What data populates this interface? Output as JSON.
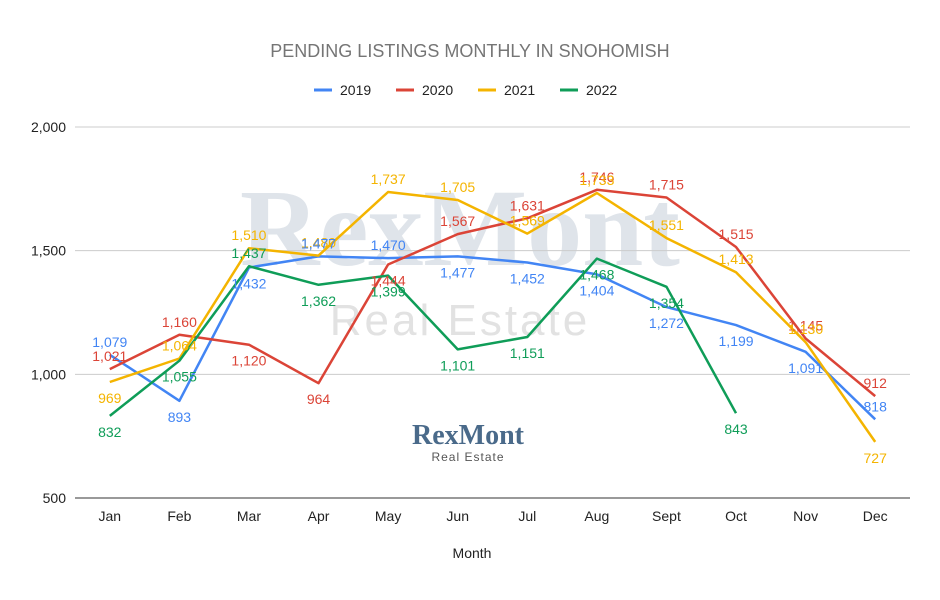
{
  "chart_data": {
    "type": "line",
    "title": "PENDING LISTINGS MONTHLY IN SNOHOMISH",
    "xlabel": "Month",
    "ylabel": "",
    "ylim": [
      500,
      2000
    ],
    "yticks": [
      500,
      1000,
      1500,
      2000
    ],
    "ytick_labels": [
      "500",
      "1,000",
      "1,500",
      "2,000"
    ],
    "grid": true,
    "legend_position": "top",
    "categories": [
      "Jan",
      "Feb",
      "Mar",
      "Apr",
      "May",
      "Jun",
      "Jul",
      "Aug",
      "Sept",
      "Oct",
      "Nov",
      "Dec"
    ],
    "series": [
      {
        "name": "2019",
        "color": "#4285f4",
        "values": [
          1079,
          893,
          1432,
          1477,
          1470,
          1477,
          1452,
          1404,
          1272,
          1199,
          1091,
          818
        ],
        "labels": [
          "1,079",
          "893",
          "1,432",
          "1,477",
          "1,470",
          "1,477",
          "1,452",
          "1,404",
          "1,272",
          "1,199",
          "1,091",
          "818"
        ]
      },
      {
        "name": "2020",
        "color": "#db4437",
        "values": [
          1021,
          1160,
          1120,
          964,
          1444,
          1567,
          1631,
          1746,
          1715,
          1515,
          1145,
          912
        ],
        "labels": [
          "1,021",
          "1,160",
          "1,120",
          "964",
          "1,444",
          "1,567",
          "1,631",
          "1,746",
          "1,715",
          "1,515",
          "1,145",
          "912"
        ]
      },
      {
        "name": "2021",
        "color": "#f4b400",
        "values": [
          969,
          1064,
          1510,
          1480,
          1737,
          1705,
          1569,
          1733,
          1551,
          1413,
          1130,
          727
        ],
        "labels": [
          "969",
          "1,064",
          "1,510",
          "1,480",
          "1,737",
          "1,705",
          "1,569",
          "1,733",
          "1,551",
          "1,413",
          "1,130",
          "727"
        ]
      },
      {
        "name": "2022",
        "color": "#0f9d58",
        "values": [
          832,
          1055,
          1437,
          1362,
          1399,
          1101,
          1151,
          1468,
          1354,
          843,
          null,
          null
        ],
        "labels": [
          "832",
          "1,055",
          "1,437",
          "1,362",
          "1,399",
          "1,101",
          "1,151",
          "1,468",
          "1,354",
          "843",
          null,
          null
        ]
      }
    ]
  },
  "watermark": {
    "main": "RexMont",
    "sub": "Real Estate"
  },
  "logo": {
    "main": "RexMont",
    "sub": "Real Estate"
  }
}
